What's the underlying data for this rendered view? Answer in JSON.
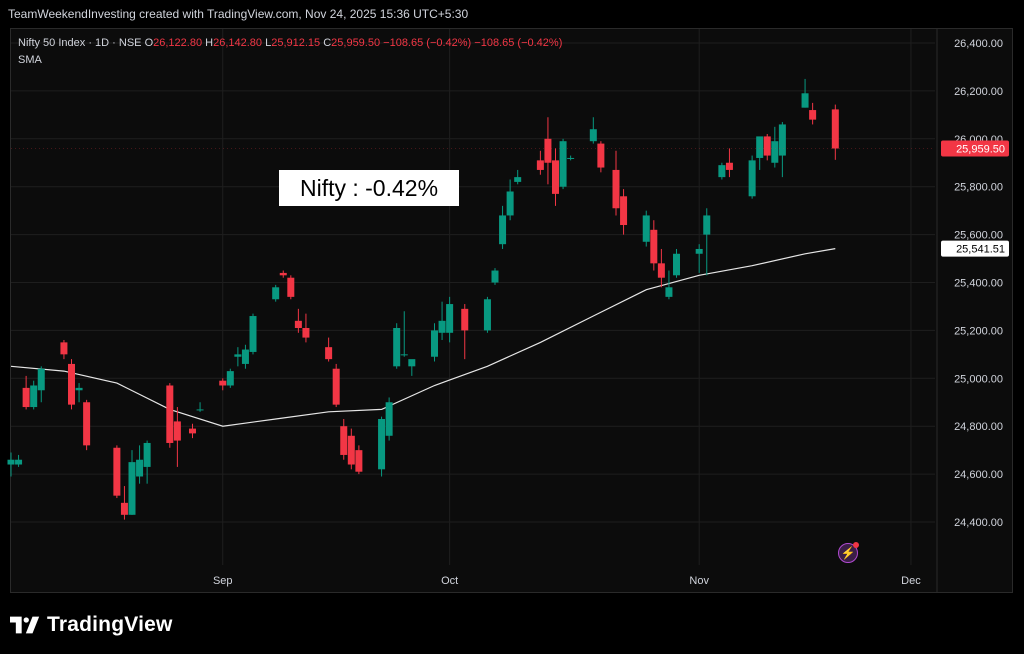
{
  "header": {
    "attribution": "TeamWeekendInvesting created with TradingView.com, Nov 24, 2025 15:36 UTC+5:30"
  },
  "legend": {
    "symbol": "Nifty 50 Index · 1D · NSE",
    "o_label": "O",
    "o_value": "26,122.80",
    "h_label": "H",
    "h_value": "26,142.80",
    "l_label": "L",
    "l_value": "25,912.15",
    "c_label": "C",
    "c_value": "25,959.50",
    "change1": "−108.65 (−0.42%)",
    "change2": "−108.65 (−0.42%)",
    "indicator": "SMA"
  },
  "annotation": {
    "text": "Nifty : -0.42%"
  },
  "footer": {
    "brand": "TradingView"
  },
  "colors": {
    "up": "#089981",
    "down": "#f23645",
    "sma": "#e6e6e6",
    "grid": "#1e1e1e",
    "text": "#d1d4dc"
  },
  "chart_data": {
    "type": "candlestick",
    "title": "Nifty 50 Index · 1D · NSE",
    "ylim": [
      24200,
      26540
    ],
    "y_ticks": [
      24400,
      24600,
      24800,
      25000,
      25200,
      25400,
      25600,
      25800,
      26000,
      26200,
      26400
    ],
    "y_tick_labels": [
      "24,400.00",
      "24,600.00",
      "24,800.00",
      "25,000.00",
      "25,200.00",
      "25,400.00",
      "25,600.00",
      "25,800.00",
      "26,000.00",
      "26,200.00",
      "26,400.00"
    ],
    "x_labels": [
      {
        "label": "Sep",
        "date": "2025-09-01"
      },
      {
        "label": "Oct",
        "date": "2025-10-01"
      },
      {
        "label": "Nov",
        "date": "2025-11-03"
      },
      {
        "label": "Dec",
        "date": "2025-12-01"
      }
    ],
    "last_price": {
      "value": 25959.5,
      "label": "25,959.50"
    },
    "sma_last": {
      "value": 25541.51,
      "label": "25,541.51"
    },
    "candles": [
      {
        "date": "2025-08-04",
        "o": 24640,
        "h": 24690,
        "l": 24590,
        "c": 24660
      },
      {
        "date": "2025-08-05",
        "o": 24640,
        "h": 24680,
        "l": 24630,
        "c": 24660
      },
      {
        "date": "2025-08-06",
        "o": 24960,
        "h": 25010,
        "l": 24870,
        "c": 24880
      },
      {
        "date": "2025-08-07",
        "o": 24880,
        "h": 24990,
        "l": 24870,
        "c": 24970
      },
      {
        "date": "2025-08-08",
        "o": 24950,
        "h": 25050,
        "l": 24900,
        "c": 25040
      },
      {
        "date": "2025-08-11",
        "o": 25150,
        "h": 25160,
        "l": 25080,
        "c": 25100
      },
      {
        "date": "2025-08-12",
        "o": 25060,
        "h": 25080,
        "l": 24870,
        "c": 24890
      },
      {
        "date": "2025-08-13",
        "o": 24950,
        "h": 24980,
        "l": 24900,
        "c": 24960
      },
      {
        "date": "2025-08-14",
        "o": 24900,
        "h": 24910,
        "l": 24700,
        "c": 24720
      },
      {
        "date": "2025-08-18",
        "o": 24710,
        "h": 24720,
        "l": 24500,
        "c": 24510
      },
      {
        "date": "2025-08-19",
        "o": 24480,
        "h": 24550,
        "l": 24410,
        "c": 24430
      },
      {
        "date": "2025-08-20",
        "o": 24430,
        "h": 24700,
        "l": 24430,
        "c": 24650
      },
      {
        "date": "2025-08-21",
        "o": 24590,
        "h": 24720,
        "l": 24560,
        "c": 24660
      },
      {
        "date": "2025-08-22",
        "o": 24630,
        "h": 24740,
        "l": 24560,
        "c": 24730
      },
      {
        "date": "2025-08-25",
        "o": 24970,
        "h": 24980,
        "l": 24710,
        "c": 24730
      },
      {
        "date": "2025-08-26",
        "o": 24820,
        "h": 24880,
        "l": 24630,
        "c": 24740
      },
      {
        "date": "2025-08-28",
        "o": 24790,
        "h": 24810,
        "l": 24750,
        "c": 24770
      },
      {
        "date": "2025-08-29",
        "o": 24870,
        "h": 24900,
        "l": 24860,
        "c": 24870
      },
      {
        "date": "2025-09-01",
        "o": 24990,
        "h": 25000,
        "l": 24950,
        "c": 24970
      },
      {
        "date": "2025-09-02",
        "o": 24970,
        "h": 25040,
        "l": 24960,
        "c": 25030
      },
      {
        "date": "2025-09-03",
        "o": 25090,
        "h": 25130,
        "l": 25050,
        "c": 25100
      },
      {
        "date": "2025-09-04",
        "o": 25060,
        "h": 25140,
        "l": 25040,
        "c": 25120
      },
      {
        "date": "2025-09-05",
        "o": 25110,
        "h": 25270,
        "l": 25100,
        "c": 25260
      },
      {
        "date": "2025-09-08",
        "o": 25330,
        "h": 25390,
        "l": 25320,
        "c": 25380
      },
      {
        "date": "2025-09-09",
        "o": 25440,
        "h": 25450,
        "l": 25420,
        "c": 25430
      },
      {
        "date": "2025-09-10",
        "o": 25420,
        "h": 25430,
        "l": 25330,
        "c": 25340
      },
      {
        "date": "2025-09-11",
        "o": 25240,
        "h": 25290,
        "l": 25190,
        "c": 25210
      },
      {
        "date": "2025-09-12",
        "o": 25210,
        "h": 25270,
        "l": 25150,
        "c": 25170
      },
      {
        "date": "2025-09-15",
        "o": 25130,
        "h": 25170,
        "l": 25070,
        "c": 25080
      },
      {
        "date": "2025-09-16",
        "o": 25040,
        "h": 25060,
        "l": 24880,
        "c": 24890
      },
      {
        "date": "2025-09-17",
        "o": 24800,
        "h": 24830,
        "l": 24660,
        "c": 24680
      },
      {
        "date": "2025-09-18",
        "o": 24760,
        "h": 24790,
        "l": 24620,
        "c": 24640
      },
      {
        "date": "2025-09-19",
        "o": 24700,
        "h": 24720,
        "l": 24600,
        "c": 24610
      },
      {
        "date": "2025-09-22",
        "o": 24620,
        "h": 24840,
        "l": 24590,
        "c": 24830
      },
      {
        "date": "2025-09-23",
        "o": 24760,
        "h": 24920,
        "l": 24740,
        "c": 24900
      },
      {
        "date": "2025-09-24",
        "o": 25050,
        "h": 25230,
        "l": 25040,
        "c": 25210
      },
      {
        "date": "2025-09-25",
        "o": 25100,
        "h": 25280,
        "l": 25090,
        "c": 25100
      },
      {
        "date": "2025-09-26",
        "o": 25050,
        "h": 25060,
        "l": 25010,
        "c": 25080
      },
      {
        "date": "2025-09-29",
        "o": 25090,
        "h": 25230,
        "l": 25070,
        "c": 25200
      },
      {
        "date": "2025-09-30",
        "o": 25190,
        "h": 25320,
        "l": 25160,
        "c": 25240
      },
      {
        "date": "2025-10-01",
        "o": 25190,
        "h": 25340,
        "l": 25150,
        "c": 25310
      },
      {
        "date": "2025-10-03",
        "o": 25290,
        "h": 25310,
        "l": 25080,
        "c": 25200
      },
      {
        "date": "2025-10-06",
        "o": 25200,
        "h": 25340,
        "l": 25190,
        "c": 25330
      },
      {
        "date": "2025-10-07",
        "o": 25400,
        "h": 25460,
        "l": 25390,
        "c": 25450
      },
      {
        "date": "2025-10-08",
        "o": 25560,
        "h": 25720,
        "l": 25540,
        "c": 25680
      },
      {
        "date": "2025-10-09",
        "o": 25680,
        "h": 25830,
        "l": 25660,
        "c": 25780
      },
      {
        "date": "2025-10-10",
        "o": 25820,
        "h": 25870,
        "l": 25810,
        "c": 25840
      },
      {
        "date": "2025-10-13",
        "o": 25910,
        "h": 25950,
        "l": 25850,
        "c": 25870
      },
      {
        "date": "2025-10-14",
        "o": 26000,
        "h": 26090,
        "l": 25810,
        "c": 25900
      },
      {
        "date": "2025-10-15",
        "o": 25910,
        "h": 25960,
        "l": 25720,
        "c": 25770
      },
      {
        "date": "2025-10-16",
        "o": 25800,
        "h": 26000,
        "l": 25790,
        "c": 25990
      },
      {
        "date": "2025-10-17",
        "o": 25920,
        "h": 25930,
        "l": 25910,
        "c": 25920
      },
      {
        "date": "2025-10-20",
        "o": 25990,
        "h": 26090,
        "l": 25980,
        "c": 26040
      },
      {
        "date": "2025-10-21",
        "o": 25980,
        "h": 25990,
        "l": 25860,
        "c": 25880
      },
      {
        "date": "2025-10-23",
        "o": 25870,
        "h": 25950,
        "l": 25680,
        "c": 25710
      },
      {
        "date": "2025-10-24",
        "o": 25760,
        "h": 25790,
        "l": 25600,
        "c": 25640
      },
      {
        "date": "2025-10-27",
        "o": 25570,
        "h": 25700,
        "l": 25550,
        "c": 25680
      },
      {
        "date": "2025-10-28",
        "o": 25620,
        "h": 25660,
        "l": 25450,
        "c": 25480
      },
      {
        "date": "2025-10-29",
        "o": 25480,
        "h": 25540,
        "l": 25380,
        "c": 25420
      },
      {
        "date": "2025-10-30",
        "o": 25340,
        "h": 25450,
        "l": 25330,
        "c": 25380
      },
      {
        "date": "2025-10-31",
        "o": 25430,
        "h": 25540,
        "l": 25420,
        "c": 25520
      },
      {
        "date": "2025-11-03",
        "o": 25520,
        "h": 25560,
        "l": 25440,
        "c": 25540
      },
      {
        "date": "2025-11-04",
        "o": 25600,
        "h": 25710,
        "l": 25430,
        "c": 25680
      },
      {
        "date": "2025-11-06",
        "o": 25840,
        "h": 25900,
        "l": 25830,
        "c": 25890
      },
      {
        "date": "2025-11-07",
        "o": 25900,
        "h": 25960,
        "l": 25840,
        "c": 25870
      },
      {
        "date": "2025-11-10",
        "o": 25760,
        "h": 25930,
        "l": 25750,
        "c": 25910
      },
      {
        "date": "2025-11-11",
        "o": 25920,
        "h": 26000,
        "l": 25870,
        "c": 26010
      },
      {
        "date": "2025-11-12",
        "o": 26010,
        "h": 26020,
        "l": 25910,
        "c": 25930
      },
      {
        "date": "2025-11-13",
        "o": 25900,
        "h": 26050,
        "l": 25880,
        "c": 25990
      },
      {
        "date": "2025-11-14",
        "o": 25930,
        "h": 26070,
        "l": 25840,
        "c": 26060
      },
      {
        "date": "2025-11-17",
        "o": 26130,
        "h": 26250,
        "l": 26130,
        "c": 26190
      },
      {
        "date": "2025-11-18",
        "o": 26120,
        "h": 26150,
        "l": 26060,
        "c": 26080
      },
      {
        "date": "2025-11-21",
        "o": 26122.8,
        "h": 26142.8,
        "l": 25912.15,
        "c": 25959.5
      }
    ],
    "sma": [
      {
        "date": "2025-08-04",
        "v": 25050
      },
      {
        "date": "2025-08-11",
        "v": 25030
      },
      {
        "date": "2025-08-18",
        "v": 24980
      },
      {
        "date": "2025-08-25",
        "v": 24870
      },
      {
        "date": "2025-09-01",
        "v": 24800
      },
      {
        "date": "2025-09-08",
        "v": 24830
      },
      {
        "date": "2025-09-15",
        "v": 24860
      },
      {
        "date": "2025-09-22",
        "v": 24870
      },
      {
        "date": "2025-09-29",
        "v": 24970
      },
      {
        "date": "2025-10-06",
        "v": 25050
      },
      {
        "date": "2025-10-13",
        "v": 25150
      },
      {
        "date": "2025-10-20",
        "v": 25260
      },
      {
        "date": "2025-10-27",
        "v": 25370
      },
      {
        "date": "2025-11-03",
        "v": 25430
      },
      {
        "date": "2025-11-10",
        "v": 25470
      },
      {
        "date": "2025-11-17",
        "v": 25520
      },
      {
        "date": "2025-11-21",
        "v": 25541.51
      }
    ]
  }
}
